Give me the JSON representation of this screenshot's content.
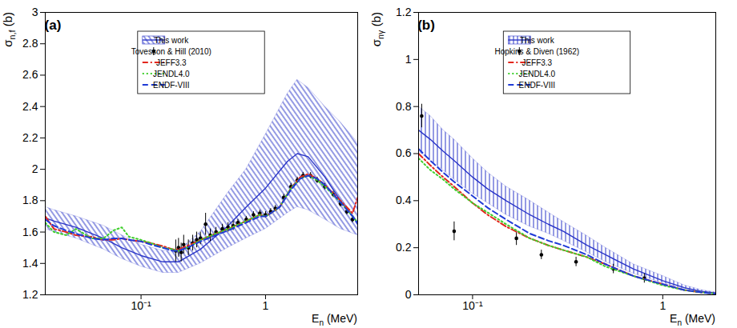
{
  "chart_data": [
    {
      "type": "line",
      "annotations": [
        "(a)"
      ],
      "xlabel": {
        "text": "E",
        "subscript": "n",
        "suffix": " (MeV)"
      },
      "ylabel": {
        "text": "σ",
        "subscript": "n,f",
        "suffix": " (b)"
      },
      "log": "x",
      "grid": false,
      "legend": "top",
      "xlim": [
        0.017,
        5.5
      ],
      "xticks": [
        {
          "value": 0.1,
          "label": "10⁻¹"
        },
        1
      ],
      "ylim": [
        1.2,
        3
      ],
      "yticks": [
        1.2,
        1.4,
        1.6,
        1.8,
        2,
        2.2,
        2.4,
        2.6,
        2.8,
        3
      ],
      "series": [
        {
          "name": "This work",
          "type": "band",
          "color": "#2a35c8",
          "line_style": "solid",
          "x": [
            0.017,
            0.02,
            0.03,
            0.05,
            0.07,
            0.1,
            0.15,
            0.2,
            0.3,
            0.5,
            0.7,
            1,
            1.5,
            1.8,
            2.2,
            3,
            4,
            5.5
          ],
          "values": [
            1.69,
            1.67,
            1.63,
            1.56,
            1.5,
            1.45,
            1.41,
            1.41,
            1.49,
            1.64,
            1.76,
            1.88,
            2.05,
            2.1,
            2.08,
            1.95,
            1.8,
            1.66
          ],
          "upper": [
            1.76,
            1.74,
            1.7,
            1.64,
            1.58,
            1.52,
            1.48,
            1.48,
            1.6,
            1.85,
            2.0,
            2.22,
            2.48,
            2.57,
            2.52,
            2.4,
            2.3,
            2.17
          ],
          "lower": [
            1.62,
            1.6,
            1.56,
            1.49,
            1.43,
            1.38,
            1.34,
            1.34,
            1.4,
            1.5,
            1.56,
            1.62,
            1.72,
            1.76,
            1.74,
            1.68,
            1.62,
            1.58
          ]
        },
        {
          "name": "Tovesson & Hill (2010)",
          "type": "scatter",
          "color": "#000000",
          "marker": "circle",
          "x": [
            0.19,
            0.2,
            0.21,
            0.22,
            0.24,
            0.26,
            0.28,
            0.3,
            0.33,
            0.36,
            0.4,
            0.45,
            0.5,
            0.55,
            0.6,
            0.7,
            0.8,
            0.9,
            1,
            1.1,
            1.2,
            1.4,
            1.6,
            1.8,
            2,
            2.3,
            2.6,
            3,
            3.5,
            4,
            4.5,
            5
          ],
          "values": [
            1.48,
            1.5,
            1.47,
            1.52,
            1.5,
            1.53,
            1.55,
            1.56,
            1.65,
            1.58,
            1.6,
            1.62,
            1.63,
            1.64,
            1.66,
            1.68,
            1.71,
            1.72,
            1.71,
            1.73,
            1.75,
            1.82,
            1.89,
            1.93,
            1.96,
            1.96,
            1.93,
            1.89,
            1.84,
            1.78,
            1.73,
            1.68
          ],
          "errors": [
            0.07,
            0.06,
            0.06,
            0.06,
            0.05,
            0.05,
            0.05,
            0.04,
            0.07,
            0.04,
            0.03,
            0.03,
            0.03,
            0.03,
            0.02,
            0.02,
            0.02,
            0.02,
            0.02,
            0.02,
            0.02,
            0.02,
            0.02,
            0.02,
            0.02,
            0.02,
            0.02,
            0.02,
            0.02,
            0.02,
            0.02,
            0.02
          ]
        },
        {
          "name": "JEFF3.3",
          "type": "line",
          "color": "#e3261c",
          "line_style": "dashdot",
          "x": [
            0.017,
            0.02,
            0.025,
            0.03,
            0.04,
            0.05,
            0.06,
            0.07,
            0.08,
            0.1,
            0.12,
            0.15,
            0.18,
            0.2,
            0.25,
            0.3,
            0.4,
            0.5,
            0.7,
            0.9,
            1,
            1.1,
            1.3,
            1.6,
            1.9,
            2.2,
            2.6,
            3,
            4,
            5,
            5.5
          ],
          "values": [
            1.7,
            1.62,
            1.6,
            1.58,
            1.57,
            1.55,
            1.55,
            1.56,
            1.55,
            1.54,
            1.53,
            1.51,
            1.49,
            1.49,
            1.52,
            1.55,
            1.59,
            1.62,
            1.67,
            1.71,
            1.7,
            1.72,
            1.76,
            1.88,
            1.95,
            1.97,
            1.94,
            1.9,
            1.8,
            1.72,
            1.82
          ]
        },
        {
          "name": "JENDL4.0",
          "type": "line",
          "color": "#3fcf2c",
          "line_style": "dotted",
          "x": [
            0.017,
            0.02,
            0.025,
            0.03,
            0.04,
            0.05,
            0.06,
            0.07,
            0.08,
            0.1,
            0.12,
            0.15,
            0.18,
            0.2,
            0.25,
            0.3,
            0.4,
            0.5,
            0.7,
            0.9,
            1,
            1.1,
            1.3,
            1.6,
            1.9,
            2.2,
            2.6,
            3,
            4,
            5,
            5.5
          ],
          "values": [
            1.66,
            1.6,
            1.58,
            1.62,
            1.56,
            1.56,
            1.61,
            1.63,
            1.57,
            1.55,
            1.53,
            1.5,
            1.49,
            1.48,
            1.51,
            1.55,
            1.59,
            1.62,
            1.67,
            1.71,
            1.7,
            1.72,
            1.76,
            1.88,
            1.94,
            1.96,
            1.93,
            1.89,
            1.79,
            1.7,
            1.66
          ]
        },
        {
          "name": "ENDF-VIII",
          "type": "line",
          "color": "#1f3ad6",
          "line_style": "dashed",
          "x": [
            0.017,
            0.02,
            0.025,
            0.03,
            0.04,
            0.05,
            0.06,
            0.07,
            0.08,
            0.1,
            0.12,
            0.15,
            0.18,
            0.2,
            0.25,
            0.3,
            0.4,
            0.5,
            0.7,
            0.9,
            1,
            1.1,
            1.3,
            1.6,
            1.9,
            2.2,
            2.6,
            3,
            4,
            5,
            5.5
          ],
          "values": [
            1.68,
            1.64,
            1.61,
            1.59,
            1.56,
            1.55,
            1.56,
            1.56,
            1.55,
            1.54,
            1.52,
            1.5,
            1.48,
            1.48,
            1.51,
            1.54,
            1.58,
            1.61,
            1.66,
            1.7,
            1.7,
            1.72,
            1.76,
            1.87,
            1.94,
            1.96,
            1.94,
            1.9,
            1.79,
            1.7,
            1.65
          ]
        }
      ]
    },
    {
      "type": "line",
      "annotations": [
        "(b)"
      ],
      "xlabel": {
        "text": "E",
        "subscript": "n",
        "suffix": " (MeV)"
      },
      "ylabel": {
        "text": "σ",
        "subscript": "nγ",
        "suffix": " (b)"
      },
      "log": "x",
      "grid": false,
      "legend": "top",
      "xlim": [
        0.052,
        1.9
      ],
      "xticks": [
        {
          "value": 0.1,
          "label": "10⁻¹"
        },
        1
      ],
      "ylim": [
        0,
        1.2
      ],
      "yticks": [
        0,
        0.2,
        0.4,
        0.6,
        0.8,
        1,
        1.2
      ],
      "series": [
        {
          "name": "This work",
          "type": "band",
          "color": "#2a35c8",
          "line_style": "solid",
          "x": [
            0.052,
            0.06,
            0.07,
            0.08,
            0.1,
            0.12,
            0.15,
            0.2,
            0.25,
            0.3,
            0.4,
            0.5,
            0.7,
            1,
            1.3,
            1.6,
            1.9
          ],
          "values": [
            0.7,
            0.66,
            0.61,
            0.57,
            0.5,
            0.45,
            0.4,
            0.34,
            0.3,
            0.27,
            0.21,
            0.17,
            0.11,
            0.06,
            0.03,
            0.015,
            0.008
          ],
          "upper": [
            0.8,
            0.76,
            0.7,
            0.66,
            0.58,
            0.52,
            0.46,
            0.4,
            0.35,
            0.31,
            0.25,
            0.2,
            0.13,
            0.08,
            0.04,
            0.02,
            0.01
          ],
          "lower": [
            0.61,
            0.57,
            0.53,
            0.49,
            0.43,
            0.39,
            0.34,
            0.29,
            0.26,
            0.23,
            0.18,
            0.14,
            0.09,
            0.05,
            0.025,
            0.012,
            0.006
          ]
        },
        {
          "name": "Hopkins & Diven (1962)",
          "type": "scatter",
          "color": "#000000",
          "marker": "circle",
          "x": [
            0.054,
            0.08,
            0.17,
            0.23,
            0.35,
            0.55,
            0.8
          ],
          "values": [
            0.76,
            0.27,
            0.24,
            0.17,
            0.14,
            0.11,
            0.07
          ],
          "errors": [
            0.05,
            0.04,
            0.03,
            0.02,
            0.02,
            0.02,
            0.02
          ]
        },
        {
          "name": "JEFF3.3",
          "type": "line",
          "color": "#e3261c",
          "line_style": "dashdot",
          "x": [
            0.052,
            0.06,
            0.07,
            0.08,
            0.1,
            0.12,
            0.15,
            0.2,
            0.25,
            0.3,
            0.4,
            0.5,
            0.7,
            1,
            1.3,
            1.6,
            1.9
          ],
          "values": [
            0.6,
            0.55,
            0.5,
            0.46,
            0.39,
            0.34,
            0.29,
            0.24,
            0.21,
            0.19,
            0.16,
            0.13,
            0.08,
            0.045,
            0.02,
            0.01,
            0.005
          ]
        },
        {
          "name": "JENDL4.0",
          "type": "line",
          "color": "#3fcf2c",
          "line_style": "dotted",
          "x": [
            0.052,
            0.06,
            0.07,
            0.08,
            0.1,
            0.12,
            0.15,
            0.2,
            0.25,
            0.3,
            0.4,
            0.5,
            0.7,
            1,
            1.3,
            1.6,
            1.9
          ],
          "values": [
            0.58,
            0.53,
            0.49,
            0.45,
            0.39,
            0.35,
            0.3,
            0.24,
            0.21,
            0.19,
            0.16,
            0.12,
            0.08,
            0.04,
            0.02,
            0.01,
            0.005
          ]
        },
        {
          "name": "ENDF-VIII",
          "type": "line",
          "color": "#1f3ad6",
          "line_style": "dashed",
          "x": [
            0.052,
            0.06,
            0.07,
            0.08,
            0.1,
            0.12,
            0.15,
            0.2,
            0.25,
            0.3,
            0.4,
            0.5,
            0.7,
            1,
            1.3,
            1.6,
            1.9
          ],
          "values": [
            0.62,
            0.57,
            0.52,
            0.48,
            0.42,
            0.37,
            0.32,
            0.26,
            0.23,
            0.21,
            0.17,
            0.13,
            0.08,
            0.045,
            0.02,
            0.01,
            0.005
          ]
        }
      ]
    }
  ]
}
